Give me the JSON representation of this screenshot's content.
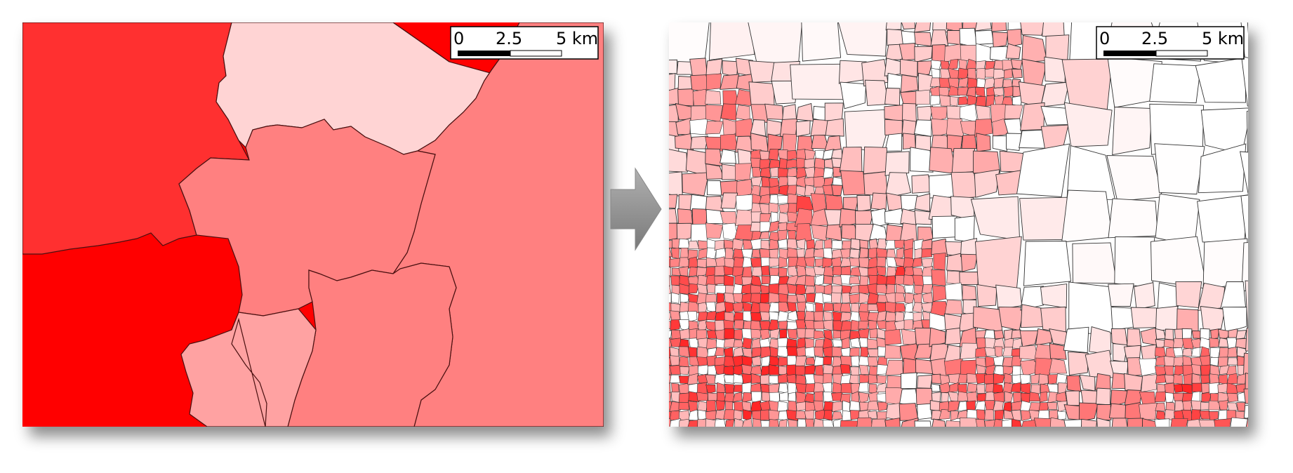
{
  "left_map": {
    "scale_bar": {
      "labels": [
        "0",
        "2.5",
        "5 km"
      ]
    }
  },
  "right_map": {
    "scale_bar": {
      "labels": [
        "0",
        "2.5",
        "5 km"
      ]
    }
  }
}
